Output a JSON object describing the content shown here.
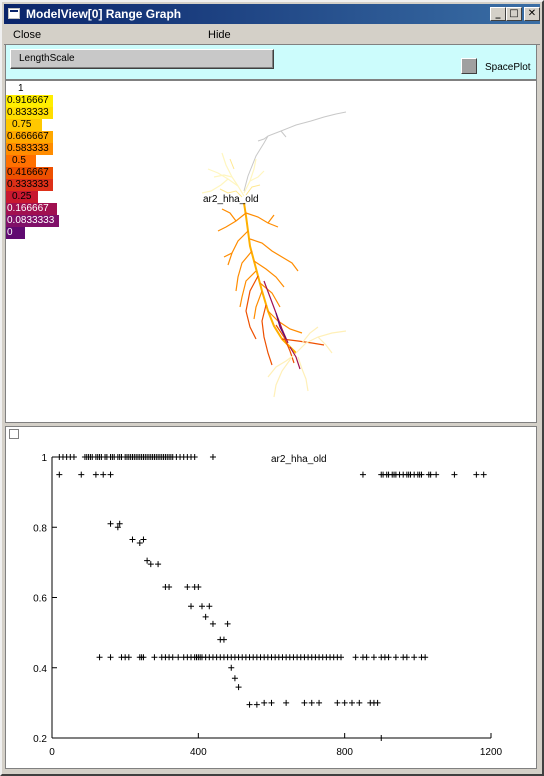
{
  "window": {
    "title": "ModelView[0] Range Graph",
    "controls": [
      "_",
      "□",
      "✕"
    ]
  },
  "menu": {
    "close_label": "Close",
    "hide_label": "Hide"
  },
  "toolbar": {
    "lengthscale_label": "LengthScale",
    "spaceplot_label": "SpacePlot"
  },
  "space_plot": {
    "cell_name": "ar2_hha_old",
    "legend": [
      {
        "label": "1",
        "color": "#ffffff"
      },
      {
        "label": "0.916667",
        "color": "#ffee00"
      },
      {
        "label": "0.833333",
        "color": "#ffdd00"
      },
      {
        "label": "0.75",
        "color": "#ffc800"
      },
      {
        "label": "0.666667",
        "color": "#ffa800"
      },
      {
        "label": "0.583333",
        "color": "#ff8c00"
      },
      {
        "label": "0.5",
        "color": "#ff7000"
      },
      {
        "label": "0.416667",
        "color": "#ee5000"
      },
      {
        "label": "0.333333",
        "color": "#dd3018"
      },
      {
        "label": "0.25",
        "color": "#c81830"
      },
      {
        "label": "0.166667",
        "color": "#a01050"
      },
      {
        "label": "0.0833333",
        "color": "#801068"
      },
      {
        "label": "0",
        "color": "#600a70"
      }
    ]
  },
  "chart_data": {
    "type": "scatter",
    "title": "ar2_hha_old",
    "xlim": [
      0,
      1200
    ],
    "ylim": [
      0.2,
      1
    ],
    "xticks": [
      0,
      400,
      800,
      1200
    ],
    "yticks": [
      0.2,
      0.4,
      0.6,
      0.8,
      1
    ],
    "marker": "+",
    "series": [
      {
        "x": [
          20,
          30,
          40,
          50,
          60,
          90,
          95,
          100,
          105,
          110,
          120,
          125,
          130,
          135,
          145,
          150,
          160,
          165,
          170,
          180,
          185,
          190,
          200,
          205,
          210,
          215,
          220,
          225,
          230,
          235,
          240,
          245,
          250,
          255,
          260,
          265,
          270,
          275,
          280,
          285,
          290,
          295,
          300,
          305,
          310,
          315,
          320,
          325,
          330,
          340,
          350,
          360,
          370,
          380,
          390,
          440,
          20,
          80,
          120,
          140,
          160,
          850,
          900,
          905,
          915,
          920,
          930,
          935,
          940,
          950,
          960,
          970,
          975,
          980,
          990,
          1000,
          1005,
          1010,
          1030,
          1035,
          1050,
          1100,
          1160,
          1180,
          160,
          180,
          185,
          220,
          240,
          250,
          260,
          270,
          290,
          310,
          320,
          370,
          380,
          390,
          400,
          410,
          420,
          430,
          440,
          460,
          470,
          480,
          490,
          500,
          510,
          540,
          560,
          580,
          600,
          640,
          690,
          710,
          730,
          780,
          800,
          820,
          840,
          870,
          880,
          890,
          900,
          130,
          160,
          190,
          200,
          210,
          240,
          245,
          250,
          280,
          300,
          310,
          320,
          330,
          345,
          360,
          370,
          380,
          390,
          395,
          400,
          405,
          410,
          420,
          430,
          440,
          450,
          460,
          470,
          480,
          490,
          500,
          510,
          520,
          530,
          540,
          550,
          560,
          570,
          580,
          590,
          600,
          610,
          620,
          630,
          640,
          650,
          660,
          670,
          680,
          690,
          700,
          710,
          720,
          730,
          740,
          750,
          760,
          770,
          780,
          790,
          830,
          850,
          860,
          880,
          900,
          910,
          920,
          940,
          960,
          970,
          990,
          1010,
          1020
        ],
        "y": [
          1,
          1,
          1,
          1,
          1,
          1,
          1,
          1,
          1,
          1,
          1,
          1,
          1,
          1,
          1,
          1,
          1,
          1,
          1,
          1,
          1,
          1,
          1,
          1,
          1,
          1,
          1,
          1,
          1,
          1,
          1,
          1,
          1,
          1,
          1,
          1,
          1,
          1,
          1,
          1,
          1,
          1,
          1,
          1,
          1,
          1,
          1,
          1,
          1,
          1,
          1,
          1,
          1,
          1,
          1,
          1,
          0.95,
          0.95,
          0.95,
          0.95,
          0.95,
          0.95,
          0.95,
          0.95,
          0.95,
          0.95,
          0.95,
          0.95,
          0.95,
          0.95,
          0.95,
          0.95,
          0.95,
          0.95,
          0.95,
          0.95,
          0.95,
          0.95,
          0.95,
          0.95,
          0.95,
          0.95,
          0.95,
          0.95,
          0.81,
          0.8,
          0.81,
          0.765,
          0.755,
          0.765,
          0.705,
          0.695,
          0.695,
          0.63,
          0.63,
          0.63,
          0.575,
          0.63,
          0.63,
          0.575,
          0.545,
          0.575,
          0.525,
          0.48,
          0.48,
          0.525,
          0.4,
          0.37,
          0.345,
          0.295,
          0.295,
          0.3,
          0.3,
          0.3,
          0.3,
          0.3,
          0.3,
          0.3,
          0.3,
          0.3,
          0.3,
          0.3,
          0.3,
          0.3,
          0.2,
          0.43,
          0.43,
          0.43,
          0.43,
          0.43,
          0.43,
          0.43,
          0.43,
          0.43,
          0.43,
          0.43,
          0.43,
          0.43,
          0.43,
          0.43,
          0.43,
          0.43,
          0.43,
          0.43,
          0.43,
          0.43,
          0.43,
          0.43,
          0.43,
          0.43,
          0.43,
          0.43,
          0.43,
          0.43,
          0.43,
          0.43,
          0.43,
          0.43,
          0.43,
          0.43,
          0.43,
          0.43,
          0.43,
          0.43,
          0.43,
          0.43,
          0.43,
          0.43,
          0.43,
          0.43,
          0.43,
          0.43,
          0.43,
          0.43,
          0.43,
          0.43,
          0.43,
          0.43,
          0.43,
          0.43,
          0.43,
          0.43,
          0.43,
          0.43,
          0.43,
          0.43,
          0.43,
          0.43,
          0.43,
          0.43,
          0.43,
          0.43,
          0.43,
          0.43,
          0.43,
          0.43,
          0.43,
          0.43
        ]
      }
    ]
  }
}
